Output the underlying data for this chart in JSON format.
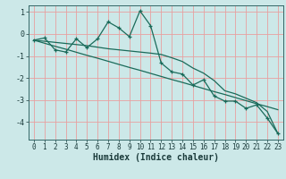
{
  "title": "",
  "xlabel": "Humidex (Indice chaleur)",
  "background_color": "#cce8e8",
  "plot_bg_color": "#cce8e8",
  "grid_color": "#e8a0a0",
  "line_color": "#1a6b5a",
  "x_data": [
    0,
    1,
    2,
    3,
    4,
    5,
    6,
    7,
    8,
    9,
    10,
    11,
    12,
    13,
    14,
    15,
    16,
    17,
    18,
    19,
    20,
    21,
    22,
    23
  ],
  "y_main": [
    -0.28,
    -0.18,
    -0.72,
    -0.82,
    -0.22,
    -0.62,
    -0.22,
    0.55,
    0.28,
    -0.12,
    1.05,
    0.38,
    -1.32,
    -1.72,
    -1.82,
    -2.32,
    -2.08,
    -2.82,
    -3.05,
    -3.05,
    -3.38,
    -3.22,
    -3.82,
    -4.52
  ],
  "y_trend1": [
    -0.28,
    -0.42,
    -0.56,
    -0.69,
    -0.83,
    -0.97,
    -1.1,
    -1.24,
    -1.38,
    -1.52,
    -1.65,
    -1.79,
    -1.93,
    -2.07,
    -2.2,
    -2.34,
    -2.48,
    -2.62,
    -2.75,
    -2.89,
    -3.03,
    -3.17,
    -3.3,
    -3.44
  ],
  "y_trend2": [
    -0.28,
    -0.33,
    -0.38,
    -0.43,
    -0.48,
    -0.53,
    -0.6,
    -0.67,
    -0.72,
    -0.77,
    -0.82,
    -0.87,
    -0.93,
    -1.08,
    -1.25,
    -1.55,
    -1.78,
    -2.12,
    -2.58,
    -2.72,
    -2.92,
    -3.12,
    -3.52,
    -4.52
  ],
  "ylim": [
    -4.8,
    1.3
  ],
  "xlim": [
    -0.5,
    23.5
  ],
  "yticks": [
    1,
    0,
    -1,
    -2,
    -3,
    -4
  ],
  "xticks": [
    0,
    1,
    2,
    3,
    4,
    5,
    6,
    7,
    8,
    9,
    10,
    11,
    12,
    13,
    14,
    15,
    16,
    17,
    18,
    19,
    20,
    21,
    22,
    23
  ],
  "tick_fontsize": 5.5,
  "xlabel_fontsize": 7,
  "spine_color": "#336666"
}
